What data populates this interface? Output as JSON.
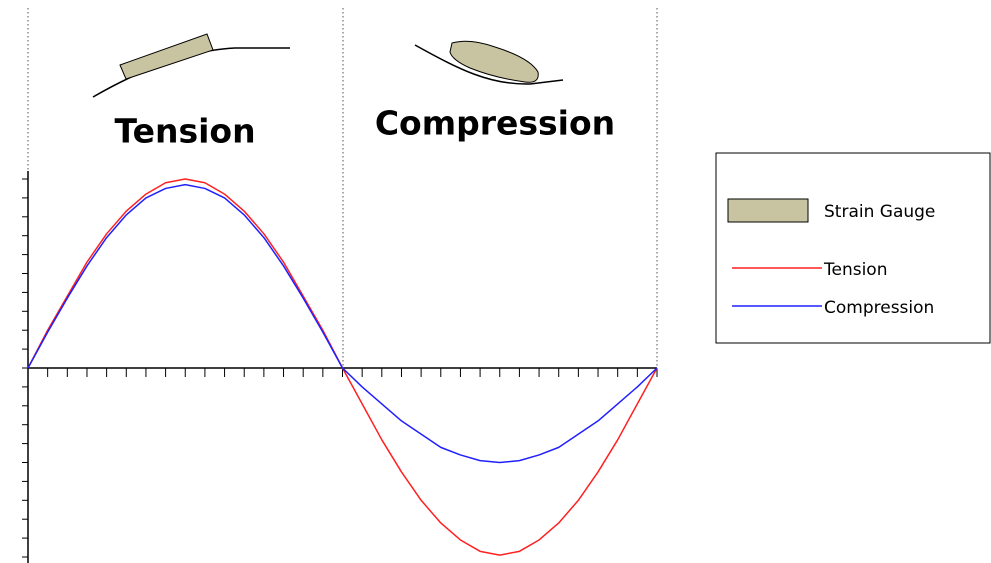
{
  "chart_data": {
    "type": "line",
    "annotations": [
      "Tension",
      "Compression"
    ],
    "gauge_label": "Strain Gauge",
    "x": [
      0,
      0.0625,
      0.125,
      0.1875,
      0.25,
      0.3125,
      0.375,
      0.4375,
      0.5,
      0.5625,
      0.625,
      0.6875,
      0.75,
      0.8125,
      0.875,
      0.9375,
      1,
      1.0625,
      1.125,
      1.1875,
      1.25,
      1.3125,
      1.375,
      1.4375,
      1.5,
      1.5625,
      1.625,
      1.6875,
      1.75,
      1.8125,
      1.875,
      1.9375,
      2
    ],
    "series": [
      {
        "name": "Tension",
        "color": "#ff2020",
        "values": [
          0,
          0.2,
          0.38,
          0.56,
          0.71,
          0.83,
          0.92,
          0.98,
          1,
          0.98,
          0.92,
          0.83,
          0.71,
          0.56,
          0.38,
          0.2,
          0,
          -0.19,
          -0.38,
          -0.55,
          -0.7,
          -0.82,
          -0.91,
          -0.97,
          -0.99,
          -0.97,
          -0.91,
          -0.82,
          -0.7,
          -0.55,
          -0.38,
          -0.19,
          0
        ]
      },
      {
        "name": "Compression",
        "color": "#2020ff",
        "values": [
          0,
          0.19,
          0.37,
          0.54,
          0.69,
          0.81,
          0.9,
          0.95,
          0.97,
          0.95,
          0.9,
          0.81,
          0.69,
          0.54,
          0.37,
          0.19,
          0,
          -0.1,
          -0.19,
          -0.28,
          -0.35,
          -0.42,
          -0.46,
          -0.49,
          -0.5,
          -0.49,
          -0.46,
          -0.42,
          -0.35,
          -0.28,
          -0.19,
          -0.1,
          0
        ]
      }
    ],
    "xlim": [
      0,
      2
    ],
    "ylim": [
      -1,
      1
    ],
    "xticks": [
      0,
      0.0625,
      0.125,
      0.1875,
      0.25,
      0.3125,
      0.375,
      0.4375,
      0.5,
      0.5625,
      0.625,
      0.6875,
      0.75,
      0.8125,
      0.875,
      0.9375,
      1,
      1.0625,
      1.125,
      1.1875,
      1.25,
      1.3125,
      1.375,
      1.4375,
      1.5,
      1.5625,
      1.625,
      1.6875,
      1.75,
      1.8125,
      1.875,
      1.9375,
      2
    ],
    "yticks": [
      -1,
      -0.9,
      -0.8,
      -0.7,
      -0.6,
      -0.5,
      -0.4,
      -0.3,
      -0.2,
      -0.1,
      0,
      0.1,
      0.2,
      0.3,
      0.4,
      0.5,
      0.6,
      0.7,
      0.8,
      0.9,
      1
    ]
  }
}
